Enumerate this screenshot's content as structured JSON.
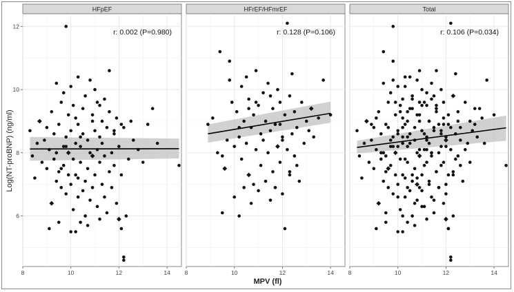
{
  "chart_data": {
    "type": "scatter",
    "ylabel": "Log(NT-proBNP) (ng/ml)",
    "xlabel": "MPV (fl)",
    "x_ticks": [
      8,
      10,
      12,
      14
    ],
    "y_ticks": [
      6,
      8,
      10,
      12
    ],
    "xlim": [
      8,
      14.6
    ],
    "ylim": [
      4.4,
      12.4
    ],
    "grid": true,
    "colors": {
      "panel_bg": "#ffffff",
      "grid": "#e6e6e6",
      "strip_bg": "#d9d9d9",
      "point": "#111111",
      "ci_band": "#bdbdbd"
    },
    "panels": [
      {
        "strip": "HFpEF",
        "annotation": "r: 0.002 (P=0.980)",
        "fit": {
          "x": [
            8.3,
            14.5
          ],
          "y": [
            8.12,
            8.13
          ],
          "ci_low": [
            7.75,
            7.82
          ],
          "ci_high": [
            8.5,
            8.45
          ]
        },
        "points": {
          "x": [
            8.3,
            8.4,
            8.5,
            8.6,
            8.7,
            8.8,
            8.9,
            9.0,
            9.0,
            9.1,
            9.1,
            9.2,
            9.2,
            9.3,
            9.3,
            9.4,
            9.4,
            9.5,
            9.5,
            9.5,
            9.6,
            9.6,
            9.7,
            9.7,
            9.7,
            9.8,
            9.8,
            9.8,
            9.9,
            9.9,
            9.9,
            10.0,
            10.0,
            10.0,
            10.0,
            10.1,
            10.1,
            10.1,
            10.2,
            10.2,
            10.2,
            10.2,
            10.3,
            10.3,
            10.3,
            10.4,
            10.4,
            10.4,
            10.5,
            10.5,
            10.5,
            10.6,
            10.6,
            10.6,
            10.7,
            10.7,
            10.7,
            10.8,
            10.8,
            10.8,
            10.9,
            10.9,
            10.9,
            11.0,
            11.0,
            11.0,
            11.1,
            11.1,
            11.1,
            11.2,
            11.2,
            11.2,
            11.3,
            11.3,
            11.3,
            11.4,
            11.4,
            11.4,
            11.5,
            11.5,
            11.6,
            11.6,
            11.6,
            11.7,
            11.7,
            11.8,
            11.8,
            11.9,
            11.9,
            12.0,
            12.0,
            12.1,
            12.1,
            12.2,
            12.2,
            12.3,
            12.4,
            12.5,
            12.6,
            12.8,
            13.0,
            13.2,
            13.4,
            13.6,
            14.5,
            9.8,
            12.2,
            12.1,
            9.4,
            10.3,
            11.2,
            11.8,
            9.6,
            10.9,
            10.4
          ],
          "y": [
            8.7,
            7.9,
            7.2,
            8.3,
            9.0,
            7.7,
            8.4,
            7.5,
            8.8,
            5.6,
            8.1,
            9.3,
            6.4,
            7.8,
            8.6,
            10.2,
            7.1,
            5.8,
            8.9,
            7.4,
            9.6,
            6.9,
            8.2,
            7.6,
            9.9,
            12.0,
            8.5,
            6.7,
            7.3,
            9.2,
            8.0,
            5.5,
            10.1,
            7.0,
            8.7,
            6.2,
            9.5,
            7.8,
            8.3,
            5.5,
            9.1,
            7.3,
            6.6,
            8.9,
            10.4,
            7.7,
            8.2,
            5.8,
            9.4,
            6.8,
            8.6,
            7.1,
            9.8,
            6.0,
            8.4,
            7.5,
            5.7,
            10.3,
            8.0,
            6.5,
            7.9,
            9.2,
            6.9,
            8.7,
            7.3,
            10.0,
            8.1,
            6.3,
            9.6,
            7.7,
            5.9,
            8.5,
            9.0,
            7.0,
            8.3,
            6.6,
            9.7,
            7.9,
            8.8,
            6.1,
            7.4,
            9.3,
            10.6,
            8.0,
            6.9,
            8.7,
            7.6,
            9.1,
            6.4,
            8.2,
            5.9,
            7.3,
            8.9,
            4.7,
            8.8,
            6.0,
            7.8,
            9.0,
            8.4,
            8.1,
            7.7,
            8.9,
            9.4,
            8.3,
            7.6,
            8.2,
            4.6,
            5.6,
            8.0,
            7.2,
            9.5,
            8.6,
            7.5,
            9.0,
            8.5
          ],
          "diamond_idx": [
            4,
            12,
            30,
            60,
            90
          ]
        }
      },
      {
        "strip": "HFrEF/HFmrEF",
        "annotation": "r: 0.128 (P=0.106)",
        "fit": {
          "x": [
            8.9,
            14.0
          ],
          "y": [
            8.6,
            9.25
          ],
          "ci_low": [
            8.32,
            8.95
          ],
          "ci_high": [
            8.9,
            9.62
          ]
        },
        "points": {
          "x": [
            8.9,
            9.1,
            9.3,
            9.4,
            9.5,
            9.6,
            9.7,
            9.8,
            9.9,
            10.0,
            10.0,
            10.1,
            10.2,
            10.2,
            10.3,
            10.3,
            10.4,
            10.4,
            10.5,
            10.5,
            10.6,
            10.6,
            10.7,
            10.7,
            10.8,
            10.8,
            10.9,
            10.9,
            11.0,
            11.0,
            11.1,
            11.1,
            11.2,
            11.2,
            11.3,
            11.3,
            11.4,
            11.4,
            11.5,
            11.5,
            11.6,
            11.6,
            11.7,
            11.7,
            11.8,
            11.8,
            11.9,
            11.9,
            12.0,
            12.0,
            12.1,
            12.1,
            12.2,
            12.2,
            12.3,
            12.3,
            12.4,
            12.4,
            12.5,
            12.5,
            12.6,
            12.7,
            12.8,
            12.9,
            13.0,
            13.1,
            13.2,
            13.3,
            13.5,
            13.7,
            14.0,
            9.5,
            10.2,
            10.9,
            11.5,
            12.0,
            12.6,
            9.8,
            10.6,
            11.9,
            12.3
          ],
          "y": [
            8.9,
            9.1,
            8.0,
            11.2,
            6.1,
            7.5,
            8.4,
            10.9,
            9.6,
            6.6,
            8.2,
            9.3,
            6.0,
            8.5,
            10.1,
            7.8,
            9.0,
            6.9,
            8.3,
            10.4,
            7.3,
            9.7,
            8.8,
            6.4,
            9.2,
            7.0,
            10.6,
            8.1,
            9.5,
            6.8,
            8.6,
            7.6,
            9.9,
            8.4,
            7.1,
            9.0,
            8.0,
            10.2,
            6.5,
            8.7,
            9.4,
            7.4,
            8.9,
            6.9,
            10.0,
            8.2,
            7.7,
            9.6,
            8.5,
            6.7,
            9.2,
            5.6,
            8.1,
            12.1,
            7.3,
            9.8,
            8.6,
            10.5,
            7.9,
            9.3,
            8.8,
            7.1,
            9.6,
            8.3,
            9.0,
            8.7,
            9.4,
            8.5,
            9.1,
            10.3,
            9.2,
            7.9,
            8.8,
            9.6,
            9.8,
            8.4,
            7.6,
            10.3,
            9.4,
            8.9,
            7.4
          ],
          "diamond_idx": [
            5,
            20,
            45,
            66
          ]
        }
      },
      {
        "strip": "Total",
        "annotation": "r: 0.106 (P=0.034)",
        "fit": {
          "x": [
            8.3,
            14.5
          ],
          "y": [
            8.17,
            8.79
          ],
          "ci_low": [
            7.98,
            8.38
          ],
          "ci_high": [
            8.38,
            9.18
          ]
        },
        "points": {
          "x": [
            8.3,
            8.4,
            8.5,
            8.6,
            8.7,
            8.8,
            8.9,
            9.0,
            9.0,
            9.1,
            9.1,
            9.2,
            9.2,
            9.3,
            9.3,
            9.4,
            9.4,
            9.5,
            9.5,
            9.5,
            9.6,
            9.6,
            9.7,
            9.7,
            9.7,
            9.8,
            9.8,
            9.8,
            9.9,
            9.9,
            9.9,
            10.0,
            10.0,
            10.0,
            10.0,
            10.1,
            10.1,
            10.1,
            10.2,
            10.2,
            10.2,
            10.2,
            10.3,
            10.3,
            10.3,
            10.4,
            10.4,
            10.4,
            10.5,
            10.5,
            10.5,
            10.6,
            10.6,
            10.6,
            10.7,
            10.7,
            10.7,
            10.8,
            10.8,
            10.8,
            10.9,
            10.9,
            10.9,
            11.0,
            11.0,
            11.0,
            11.1,
            11.1,
            11.1,
            11.2,
            11.2,
            11.2,
            11.3,
            11.3,
            11.3,
            11.4,
            11.4,
            11.4,
            11.5,
            11.5,
            11.6,
            11.6,
            11.6,
            11.7,
            11.7,
            11.8,
            11.8,
            11.9,
            11.9,
            12.0,
            12.0,
            12.1,
            12.1,
            12.2,
            12.2,
            12.3,
            12.4,
            12.5,
            12.6,
            12.8,
            13.0,
            13.2,
            13.4,
            13.6,
            14.5,
            9.8,
            12.2,
            12.1,
            9.4,
            10.3,
            11.2,
            11.8,
            9.6,
            10.9,
            10.4,
            8.9,
            9.1,
            9.3,
            9.4,
            9.5,
            9.6,
            9.7,
            9.8,
            9.9,
            10.0,
            10.0,
            10.1,
            10.2,
            10.2,
            10.3,
            10.3,
            10.4,
            10.4,
            10.5,
            10.5,
            10.6,
            10.6,
            10.7,
            10.7,
            10.8,
            10.8,
            10.9,
            10.9,
            11.0,
            11.0,
            11.1,
            11.1,
            11.2,
            11.2,
            11.3,
            11.3,
            11.4,
            11.4,
            11.5,
            11.5,
            11.6,
            11.6,
            11.7,
            11.7,
            11.8,
            11.8,
            11.9,
            11.9,
            12.0,
            12.0,
            12.1,
            12.1,
            12.2,
            12.2,
            12.3,
            12.3,
            12.4,
            12.4,
            12.5,
            12.5,
            12.6,
            12.7,
            12.8,
            12.9,
            13.0,
            13.1,
            13.2,
            13.3,
            13.5,
            13.7,
            14.0,
            9.5,
            10.2,
            10.9,
            11.5,
            12.0,
            12.6,
            9.8,
            10.6,
            11.9,
            12.3,
            10.0,
            10.4,
            10.8,
            11.2,
            11.6,
            12.0,
            9.6,
            10.2,
            11.0,
            11.4
          ],
          "y": [
            8.7,
            7.9,
            7.2,
            8.3,
            9.0,
            7.7,
            8.4,
            7.5,
            8.8,
            5.6,
            8.1,
            9.3,
            6.4,
            7.8,
            8.6,
            10.2,
            7.1,
            5.8,
            8.9,
            7.4,
            9.6,
            6.9,
            8.2,
            7.6,
            9.9,
            12.0,
            8.5,
            6.7,
            7.3,
            9.2,
            8.0,
            5.5,
            10.1,
            7.0,
            8.7,
            6.2,
            9.5,
            7.8,
            8.3,
            5.5,
            9.1,
            7.3,
            6.6,
            8.9,
            10.4,
            7.7,
            8.2,
            5.8,
            9.4,
            6.8,
            8.6,
            7.1,
            9.8,
            6.0,
            8.4,
            7.5,
            5.7,
            10.3,
            8.0,
            6.5,
            7.9,
            9.2,
            6.9,
            8.7,
            7.3,
            10.0,
            8.1,
            6.3,
            9.6,
            7.7,
            5.9,
            8.5,
            9.0,
            7.0,
            8.3,
            6.6,
            9.7,
            7.9,
            8.8,
            6.1,
            7.4,
            9.3,
            10.6,
            8.0,
            6.9,
            8.7,
            7.6,
            9.1,
            6.4,
            8.2,
            5.9,
            7.3,
            8.9,
            4.7,
            8.8,
            6.0,
            7.8,
            9.0,
            8.4,
            8.1,
            7.7,
            8.9,
            9.4,
            8.3,
            7.6,
            8.2,
            4.6,
            5.6,
            8.0,
            7.2,
            9.5,
            8.6,
            7.5,
            9.0,
            8.5,
            8.9,
            9.1,
            8.0,
            11.2,
            6.1,
            7.5,
            8.4,
            10.9,
            9.6,
            6.6,
            8.2,
            9.3,
            6.0,
            8.5,
            10.1,
            7.8,
            9.0,
            6.9,
            8.3,
            10.4,
            7.3,
            9.7,
            8.8,
            6.4,
            9.2,
            7.0,
            10.6,
            8.1,
            9.5,
            6.8,
            8.6,
            7.6,
            9.9,
            8.4,
            7.1,
            9.0,
            8.0,
            10.2,
            6.5,
            8.7,
            9.4,
            7.4,
            8.9,
            6.9,
            10.0,
            8.2,
            7.7,
            9.6,
            8.5,
            6.7,
            9.2,
            5.6,
            8.1,
            12.1,
            7.3,
            9.8,
            8.6,
            10.5,
            7.9,
            9.3,
            8.8,
            7.1,
            9.6,
            8.3,
            9.0,
            8.7,
            9.4,
            8.5,
            9.1,
            10.3,
            9.2,
            7.9,
            8.8,
            9.6,
            9.8,
            8.4,
            7.6,
            10.3,
            9.4,
            8.9,
            7.4,
            8.6,
            9.3,
            7.2,
            8.1,
            9.5,
            7.0,
            8.8,
            9.7,
            6.3,
            8.0
          ],
          "diamond_idx": [
            4,
            12,
            30,
            60,
            90,
            120,
            140,
            170,
            190
          ]
        }
      }
    ]
  }
}
